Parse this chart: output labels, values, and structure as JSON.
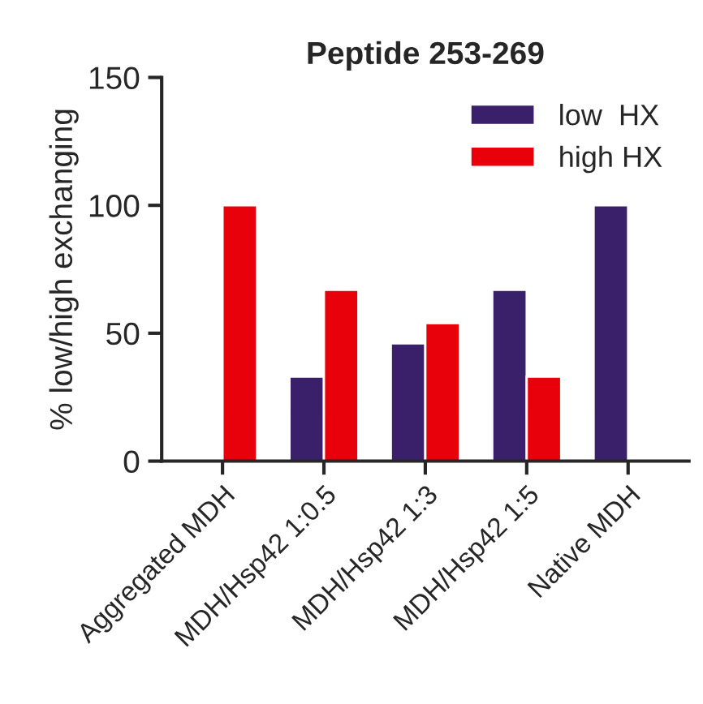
{
  "chart_data": {
    "type": "bar",
    "title": "Peptide 253-269",
    "ylabel": "% low/high exchanging",
    "categories": [
      "Aggregated MDH",
      "MDH/Hsp42 1:0.5",
      "MDH/Hsp42 1:3",
      "MDH/Hsp42 1:5",
      "Native MDH"
    ],
    "series": [
      {
        "name": "low  HX",
        "color": "#3a1f6b",
        "values": [
          null,
          33,
          46,
          67,
          100
        ]
      },
      {
        "name": "high HX",
        "color": "#e8000b",
        "values": [
          100,
          67,
          54,
          33,
          null
        ]
      }
    ],
    "ylim": [
      0,
      150
    ],
    "yticks": [
      0,
      50,
      100,
      150
    ],
    "grid": false,
    "legend": "top right"
  }
}
